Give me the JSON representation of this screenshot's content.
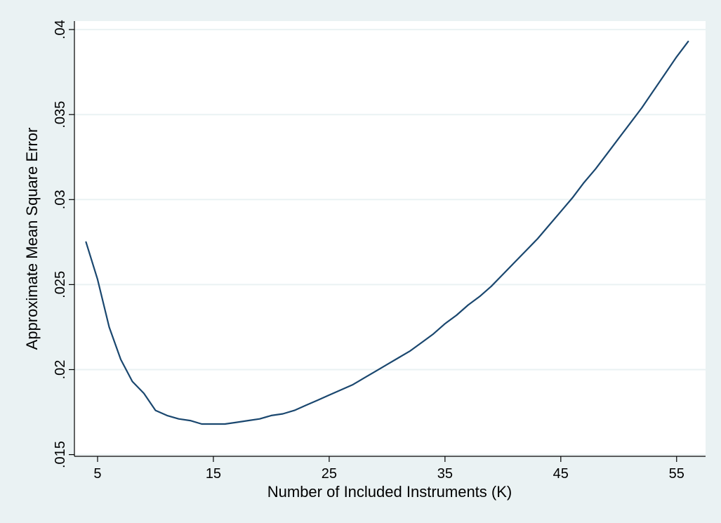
{
  "chart_data": {
    "type": "line",
    "title": "",
    "xlabel": "Number of Included Instruments (K)",
    "ylabel": "Approximate Mean Square Error",
    "xlim": [
      3,
      57.5
    ],
    "ylim": [
      0.0149,
      0.0405
    ],
    "xticks": [
      5,
      15,
      25,
      35,
      45,
      55
    ],
    "xtick_labels": [
      "5",
      "15",
      "25",
      "35",
      "45",
      "55"
    ],
    "yticks": [
      0.015,
      0.02,
      0.025,
      0.03,
      0.035,
      0.04
    ],
    "ytick_labels": [
      ".015",
      ".02",
      ".025",
      ".03",
      ".035",
      ".04"
    ],
    "grid": true,
    "colors": {
      "background": "#eaf2f3",
      "plot_area": "#ffffff",
      "grid": "#eaf2f3",
      "line": "#1a476f"
    },
    "series": [
      {
        "x": [
          4,
          5,
          6,
          7,
          8,
          9,
          10,
          11,
          12,
          13,
          14,
          15,
          16,
          17,
          18,
          19,
          20,
          21,
          22,
          23,
          24,
          25,
          26,
          27,
          28,
          29,
          30,
          31,
          32,
          33,
          34,
          35,
          36,
          37,
          38,
          39,
          40,
          41,
          42,
          43,
          44,
          45,
          46,
          47,
          48,
          49,
          50,
          51,
          52,
          53,
          54,
          55,
          56
        ],
        "y": [
          0.0275,
          0.0253,
          0.0225,
          0.0206,
          0.0193,
          0.0186,
          0.0176,
          0.0173,
          0.0171,
          0.017,
          0.0168,
          0.0168,
          0.0168,
          0.0169,
          0.017,
          0.0171,
          0.0173,
          0.0174,
          0.0176,
          0.0179,
          0.0182,
          0.0185,
          0.0188,
          0.0191,
          0.0195,
          0.0199,
          0.0203,
          0.0207,
          0.0211,
          0.0216,
          0.0221,
          0.0227,
          0.0232,
          0.0238,
          0.0243,
          0.0249,
          0.0256,
          0.0263,
          0.027,
          0.0277,
          0.0285,
          0.0293,
          0.0301,
          0.031,
          0.0318,
          0.0327,
          0.0336,
          0.0345,
          0.0354,
          0.0364,
          0.0374,
          0.0384,
          0.0393
        ]
      }
    ]
  }
}
